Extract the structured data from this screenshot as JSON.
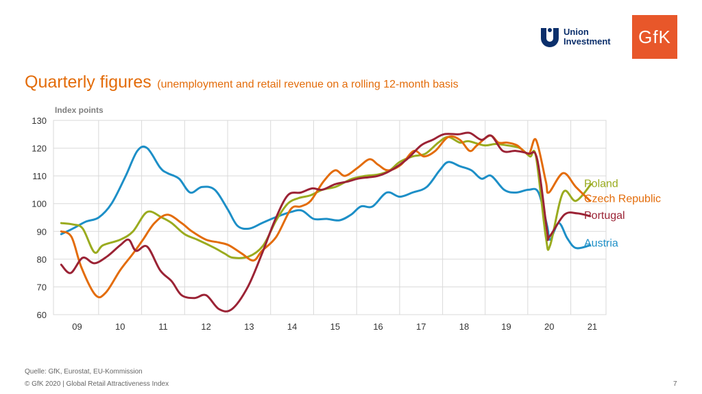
{
  "logos": {
    "union_investment": [
      "Union",
      "Investment"
    ],
    "gfk": "GfK"
  },
  "title": {
    "main": "Quarterly figures",
    "sub": "(unemployment and retail revenue on a rolling 12-month basis"
  },
  "footer": {
    "source": "Quelle: GfK, Eurostat, EU-Kommission",
    "copyright": "© GfK 2020 | Global Retail Attractiveness Index",
    "page": "7"
  },
  "chart_data": {
    "type": "line",
    "ylabel": "Index points",
    "xlabel": "",
    "ylim": [
      60,
      130
    ],
    "yticks": [
      60,
      70,
      80,
      90,
      100,
      110,
      120,
      130
    ],
    "xlim": [
      2008.45,
      2021.3
    ],
    "xticks": [
      {
        "label": "09",
        "x": 2009.0
      },
      {
        "label": "10",
        "x": 2010.0
      },
      {
        "label": "11",
        "x": 2011.0
      },
      {
        "label": "12",
        "x": 2012.0
      },
      {
        "label": "13",
        "x": 2013.0
      },
      {
        "label": "14",
        "x": 2014.0
      },
      {
        "label": "15",
        "x": 2015.0
      },
      {
        "label": "16",
        "x": 2016.0
      },
      {
        "label": "17",
        "x": 2017.0
      },
      {
        "label": "18",
        "x": 2018.0
      },
      {
        "label": "19",
        "x": 2018.98
      },
      {
        "label": "20",
        "x": 2019.98
      },
      {
        "label": "21",
        "x": 2020.98
      }
    ],
    "grid": true,
    "legend_placement": "right",
    "series": [
      {
        "name": "Poland",
        "color": "#9aab1f",
        "points": [
          [
            2008.63,
            93
          ],
          [
            2008.9,
            92.5
          ],
          [
            2009.13,
            91
          ],
          [
            2009.4,
            82.5
          ],
          [
            2009.6,
            85
          ],
          [
            2010.0,
            87
          ],
          [
            2010.3,
            90
          ],
          [
            2010.63,
            97
          ],
          [
            2010.97,
            95
          ],
          [
            2011.2,
            93
          ],
          [
            2011.5,
            89
          ],
          [
            2011.8,
            87
          ],
          [
            2012.2,
            84
          ],
          [
            2012.43,
            82
          ],
          [
            2012.63,
            80.5
          ],
          [
            2013.0,
            81
          ],
          [
            2013.33,
            85
          ],
          [
            2013.63,
            94
          ],
          [
            2013.9,
            100
          ],
          [
            2014.15,
            102
          ],
          [
            2014.43,
            103
          ],
          [
            2014.7,
            105
          ],
          [
            2015.0,
            106
          ],
          [
            2015.2,
            107.5
          ],
          [
            2015.4,
            109
          ],
          [
            2015.7,
            110
          ],
          [
            2016.0,
            110.5
          ],
          [
            2016.27,
            112
          ],
          [
            2016.5,
            115
          ],
          [
            2016.8,
            117
          ],
          [
            2017.1,
            118
          ],
          [
            2017.4,
            122
          ],
          [
            2017.63,
            124
          ],
          [
            2017.9,
            122
          ],
          [
            2018.1,
            122.5
          ],
          [
            2018.47,
            121
          ],
          [
            2018.73,
            121.5
          ],
          [
            2019.0,
            121
          ],
          [
            2019.3,
            120
          ],
          [
            2019.53,
            117
          ],
          [
            2019.67,
            117
          ],
          [
            2019.9,
            88
          ],
          [
            2020.0,
            85
          ],
          [
            2020.3,
            104
          ],
          [
            2020.6,
            101
          ],
          [
            2020.95,
            107
          ]
        ]
      },
      {
        "name": "Czech Republic",
        "color": "#e36c0a",
        "points": [
          [
            2008.63,
            90
          ],
          [
            2008.87,
            88
          ],
          [
            2009.1,
            77
          ],
          [
            2009.43,
            67
          ],
          [
            2009.67,
            68
          ],
          [
            2010.0,
            76
          ],
          [
            2010.3,
            82
          ],
          [
            2010.53,
            87
          ],
          [
            2010.8,
            93
          ],
          [
            2011.1,
            96
          ],
          [
            2011.43,
            93
          ],
          [
            2011.67,
            90
          ],
          [
            2012.0,
            87
          ],
          [
            2012.3,
            86
          ],
          [
            2012.53,
            85
          ],
          [
            2012.83,
            82
          ],
          [
            2013.1,
            79.5
          ],
          [
            2013.3,
            83
          ],
          [
            2013.63,
            88
          ],
          [
            2013.97,
            98
          ],
          [
            2014.2,
            99
          ],
          [
            2014.43,
            101
          ],
          [
            2014.73,
            108
          ],
          [
            2015.0,
            112
          ],
          [
            2015.23,
            110
          ],
          [
            2015.53,
            113
          ],
          [
            2015.8,
            116
          ],
          [
            2016.0,
            114
          ],
          [
            2016.23,
            112
          ],
          [
            2016.53,
            114
          ],
          [
            2016.83,
            119
          ],
          [
            2017.07,
            117
          ],
          [
            2017.33,
            119
          ],
          [
            2017.63,
            124
          ],
          [
            2017.9,
            123
          ],
          [
            2018.13,
            119
          ],
          [
            2018.3,
            121
          ],
          [
            2018.6,
            124.5
          ],
          [
            2018.8,
            122
          ],
          [
            2019.0,
            122
          ],
          [
            2019.23,
            121
          ],
          [
            2019.5,
            118
          ],
          [
            2019.67,
            123
          ],
          [
            2019.9,
            108
          ],
          [
            2019.97,
            104
          ],
          [
            2020.3,
            111
          ],
          [
            2020.6,
            106
          ],
          [
            2020.93,
            101
          ]
        ]
      },
      {
        "name": "Portugal",
        "color": "#9b2335",
        "points": [
          [
            2008.63,
            78
          ],
          [
            2008.85,
            75
          ],
          [
            2009.13,
            80.5
          ],
          [
            2009.4,
            78.5
          ],
          [
            2009.7,
            81
          ],
          [
            2010.0,
            85
          ],
          [
            2010.2,
            87
          ],
          [
            2010.37,
            83
          ],
          [
            2010.63,
            84.5
          ],
          [
            2010.93,
            76
          ],
          [
            2011.2,
            72
          ],
          [
            2011.43,
            67
          ],
          [
            2011.73,
            66
          ],
          [
            2012.0,
            67
          ],
          [
            2012.3,
            62
          ],
          [
            2012.6,
            62
          ],
          [
            2012.97,
            70
          ],
          [
            2013.3,
            82
          ],
          [
            2013.6,
            94
          ],
          [
            2013.9,
            103
          ],
          [
            2014.2,
            104
          ],
          [
            2014.47,
            105.5
          ],
          [
            2014.7,
            105
          ],
          [
            2015.0,
            107
          ],
          [
            2015.3,
            108
          ],
          [
            2015.53,
            109
          ],
          [
            2015.77,
            109.5
          ],
          [
            2016.0,
            110
          ],
          [
            2016.3,
            112
          ],
          [
            2016.67,
            116
          ],
          [
            2017.0,
            121
          ],
          [
            2017.27,
            123
          ],
          [
            2017.53,
            125
          ],
          [
            2017.87,
            125
          ],
          [
            2018.13,
            125.5
          ],
          [
            2018.4,
            123
          ],
          [
            2018.63,
            124.5
          ],
          [
            2018.9,
            119
          ],
          [
            2019.2,
            119
          ],
          [
            2019.5,
            118
          ],
          [
            2019.7,
            116
          ],
          [
            2019.93,
            90
          ],
          [
            2019.98,
            88
          ],
          [
            2020.33,
            96
          ],
          [
            2020.63,
            96.5
          ],
          [
            2020.93,
            95.5
          ]
        ]
      },
      {
        "name": "Austria",
        "color": "#1d8fc7",
        "points": [
          [
            2008.63,
            89
          ],
          [
            2008.9,
            91
          ],
          [
            2009.2,
            93.5
          ],
          [
            2009.5,
            95
          ],
          [
            2009.8,
            100
          ],
          [
            2010.13,
            110
          ],
          [
            2010.4,
            119
          ],
          [
            2010.63,
            120
          ],
          [
            2010.93,
            113
          ],
          [
            2011.1,
            111
          ],
          [
            2011.37,
            109
          ],
          [
            2011.63,
            104
          ],
          [
            2011.9,
            106
          ],
          [
            2012.2,
            105
          ],
          [
            2012.5,
            98
          ],
          [
            2012.73,
            92
          ],
          [
            2013.0,
            91
          ],
          [
            2013.3,
            93
          ],
          [
            2013.6,
            95
          ],
          [
            2013.97,
            97
          ],
          [
            2014.23,
            97.5
          ],
          [
            2014.5,
            94.5
          ],
          [
            2014.8,
            94.5
          ],
          [
            2015.1,
            94
          ],
          [
            2015.37,
            96
          ],
          [
            2015.6,
            99
          ],
          [
            2015.87,
            99
          ],
          [
            2016.2,
            104
          ],
          [
            2016.5,
            102.5
          ],
          [
            2016.8,
            104
          ],
          [
            2017.13,
            106
          ],
          [
            2017.43,
            112
          ],
          [
            2017.63,
            115
          ],
          [
            2017.9,
            113.5
          ],
          [
            2018.17,
            112
          ],
          [
            2018.4,
            109
          ],
          [
            2018.63,
            110
          ],
          [
            2018.93,
            105
          ],
          [
            2019.2,
            104
          ],
          [
            2019.5,
            105
          ],
          [
            2019.73,
            104
          ],
          [
            2019.93,
            92
          ],
          [
            2020.0,
            87
          ],
          [
            2020.2,
            93
          ],
          [
            2020.4,
            87.5
          ],
          [
            2020.6,
            84
          ],
          [
            2020.93,
            85
          ]
        ]
      }
    ],
    "legend_labels": [
      {
        "name": "Poland",
        "y": 107.5
      },
      {
        "name": "Czech Republic",
        "y": 102
      },
      {
        "name": "Portugal",
        "y": 96
      },
      {
        "name": "Austria",
        "y": 86
      }
    ]
  }
}
